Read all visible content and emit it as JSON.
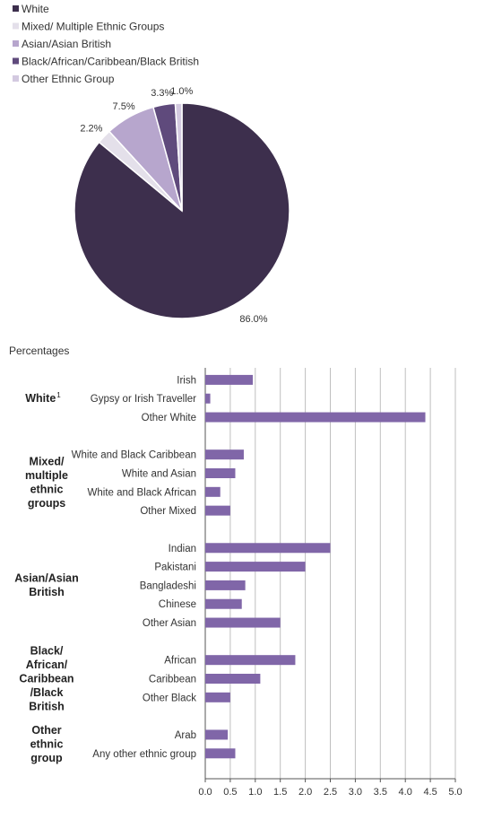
{
  "chart_data": [
    {
      "type": "pie",
      "legend": {
        "placement": "top-left",
        "entries": [
          {
            "label": "White",
            "color": "#3d2f4d"
          },
          {
            "label": "Mixed/ Multiple Ethnic Groups",
            "color": "#e4e0ea"
          },
          {
            "label": "Asian/Asian British",
            "color": "#b7a6cd"
          },
          {
            "label": "Black/African/Caribbean/Black British",
            "color": "#5f4a7c"
          },
          {
            "label": "Other Ethnic Group",
            "color": "#d3c9e0"
          }
        ]
      },
      "slices": [
        {
          "name": "White",
          "value": 86.0,
          "label": "86.0%",
          "color": "#3d2f4d"
        },
        {
          "name": "Mixed/ Multiple Ethnic Groups",
          "value": 2.2,
          "label": "2.2%",
          "color": "#e4e0ea"
        },
        {
          "name": "Asian/Asian British",
          "value": 7.5,
          "label": "7.5%",
          "color": "#b7a6cd"
        },
        {
          "name": "Black/African/Caribbean/Black British",
          "value": 3.3,
          "label": "3.3%",
          "color": "#5f4a7c"
        },
        {
          "name": "Other Ethnic Group",
          "value": 1.0,
          "label": "1.0%",
          "color": "#d3c9e0"
        }
      ]
    },
    {
      "type": "bar",
      "orientation": "horizontal",
      "ylabel": "Percentages",
      "xlim": [
        0,
        5.0
      ],
      "xticks": [
        "0.0",
        "0.5",
        "1.0",
        "1.5",
        "2.0",
        "2.5",
        "3.0",
        "3.5",
        "4.0",
        "4.5",
        "5.0"
      ],
      "grid": true,
      "bar_color": "#8066a8",
      "groups": [
        {
          "name": "White",
          "superscript": "1",
          "items": [
            {
              "label": "Irish",
              "value": 0.95
            },
            {
              "label": "Gypsy or Irish Traveller",
              "value": 0.1
            },
            {
              "label": "Other White",
              "value": 4.4
            }
          ]
        },
        {
          "name": "Mixed/ multiple ethnic groups",
          "items": [
            {
              "label": "White and Black Caribbean",
              "value": 0.77
            },
            {
              "label": "White and Asian",
              "value": 0.6
            },
            {
              "label": "White and Black African",
              "value": 0.3
            },
            {
              "label": "Other Mixed",
              "value": 0.5
            }
          ]
        },
        {
          "name": "Asian/Asian British",
          "items": [
            {
              "label": "Indian",
              "value": 2.5
            },
            {
              "label": "Pakistani",
              "value": 2.0
            },
            {
              "label": "Bangladeshi",
              "value": 0.8
            },
            {
              "label": "Chinese",
              "value": 0.73
            },
            {
              "label": "Other Asian",
              "value": 1.5
            }
          ]
        },
        {
          "name": "Black/ African/ Caribbean /Black British",
          "items": [
            {
              "label": "African",
              "value": 1.8
            },
            {
              "label": "Caribbean",
              "value": 1.1
            },
            {
              "label": "Other Black",
              "value": 0.5
            }
          ]
        },
        {
          "name": "Other ethnic group",
          "items": [
            {
              "label": "Arab",
              "value": 0.45
            },
            {
              "label": "Any other ethnic group",
              "value": 0.6
            }
          ]
        }
      ]
    }
  ]
}
